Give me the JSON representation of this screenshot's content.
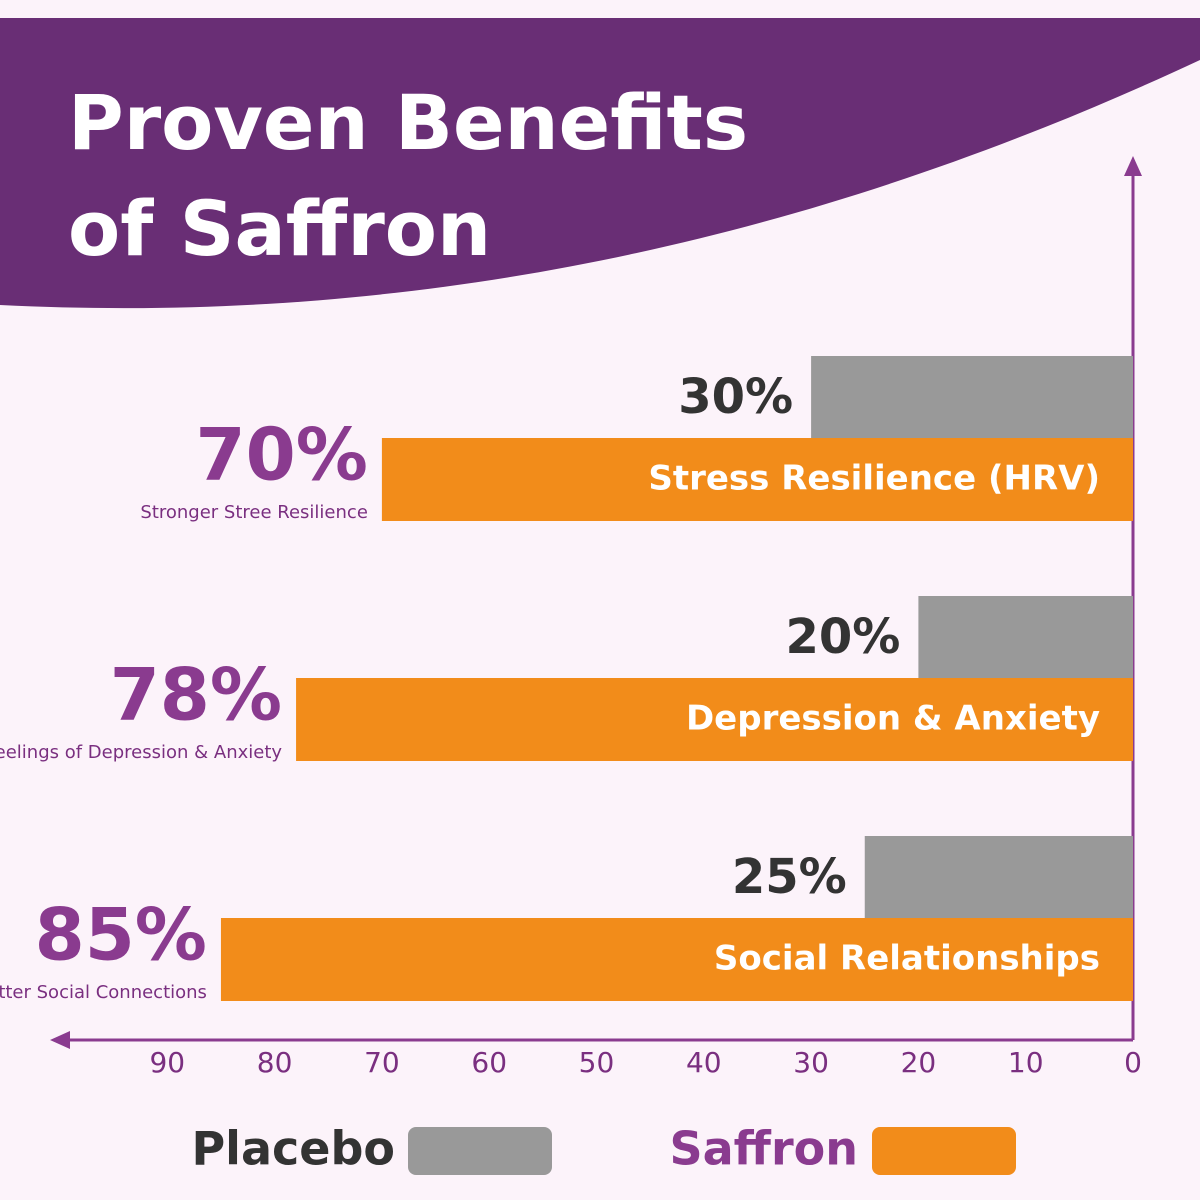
{
  "chart_data": {
    "type": "bar",
    "orientation": "horizontal",
    "x_reversed": true,
    "title": "Proven Benefits of Saffron",
    "categories": [
      "Stress Resilience (HRV)",
      "Depression & Anxiety",
      "Social Relationships"
    ],
    "category_notes": [
      "Stronger Stree Resilience",
      "Reduced Feelings of Depression & Anxiety",
      "Better Social Connections"
    ],
    "series": [
      {
        "name": "Placebo",
        "color": "#999999",
        "values": [
          30,
          20,
          25
        ],
        "value_labels": [
          "30%",
          "20%",
          "25%"
        ]
      },
      {
        "name": "Saffron",
        "color": "#f28c1a",
        "values": [
          70,
          78,
          85
        ],
        "value_labels": [
          "70%",
          "78%",
          "85%"
        ]
      }
    ],
    "xlim": [
      0,
      100
    ],
    "xticks": [
      90,
      80,
      70,
      60,
      50,
      40,
      30,
      20,
      10,
      0
    ]
  }
}
